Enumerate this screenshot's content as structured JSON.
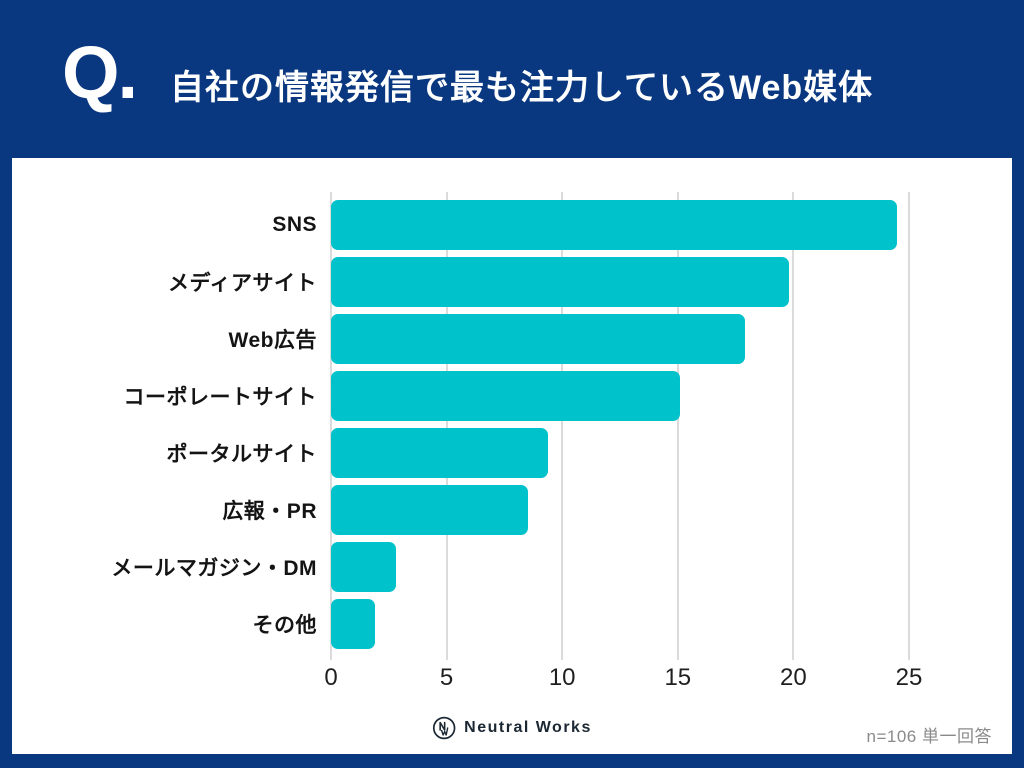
{
  "page": {
    "background_color": "#0A3880",
    "panel_color": "#FFFFFF"
  },
  "header": {
    "q_mark": "Q.",
    "title": "自社の情報発信で最も注力しているWeb媒体"
  },
  "chart_data": {
    "type": "bar",
    "orientation": "horizontal",
    "title": "自社の情報発信で最も注力しているWeb媒体",
    "categories": [
      "SNS",
      "メディアサイト",
      "Web広告",
      "コーポレートサイト",
      "ポータルサイト",
      "広報・PR",
      "メールマガジン・DM",
      "その他"
    ],
    "values": [
      24.5,
      19.8,
      17.9,
      15.1,
      9.4,
      8.5,
      2.8,
      1.9
    ],
    "xlabel": "",
    "ylabel": "",
    "xlim": [
      0,
      25
    ],
    "xticks": [
      0,
      5,
      10,
      15,
      20,
      25
    ],
    "grid": true,
    "bar_color": "#00C2CB",
    "gridline_color": "#DBDBDB"
  },
  "footer": {
    "logo_text": "Neutral Works",
    "note": "n=106 単一回答"
  }
}
